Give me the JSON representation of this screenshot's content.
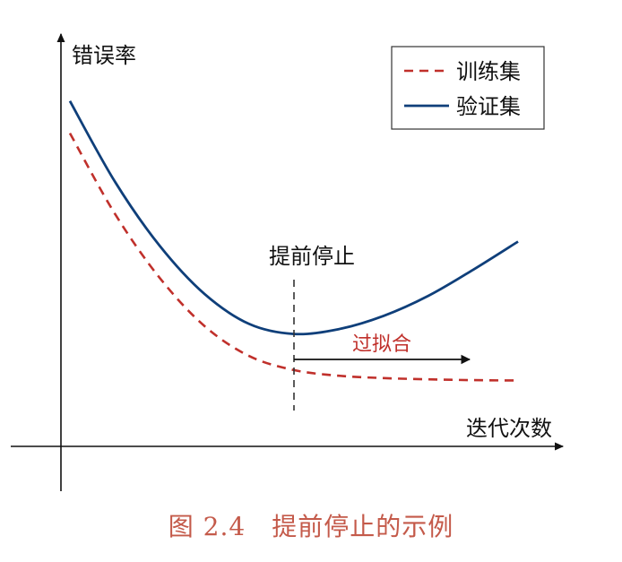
{
  "chart_data": {
    "type": "line",
    "ylabel": "错误率",
    "xlabel": "迭代次数",
    "x": [
      0,
      1,
      2,
      3,
      4,
      5,
      6,
      7,
      8,
      9,
      10
    ],
    "series": [
      {
        "name": "训练集",
        "color": "#c0302b",
        "style": "dashed",
        "values": [
          0.78,
          0.58,
          0.42,
          0.3,
          0.225,
          0.19,
          0.176,
          0.17,
          0.167,
          0.165,
          0.164
        ]
      },
      {
        "name": "验证集",
        "color": "#0f3f7a",
        "style": "solid",
        "values": [
          0.86,
          0.66,
          0.5,
          0.38,
          0.305,
          0.28,
          0.292,
          0.325,
          0.375,
          0.44,
          0.51
        ]
      }
    ],
    "annotations": {
      "early_stop_x": 5,
      "early_stop_label": "提前停止",
      "overfit_label": "过拟合"
    },
    "legend": "top-right",
    "grid": false,
    "ylim": [
      0,
      1
    ]
  },
  "caption": "图 2.4　提前停止的示例",
  "colors": {
    "axis": "#111111",
    "overfit_label": "#c0302b",
    "arrow": "#111111",
    "caption": "#c45a4a"
  }
}
